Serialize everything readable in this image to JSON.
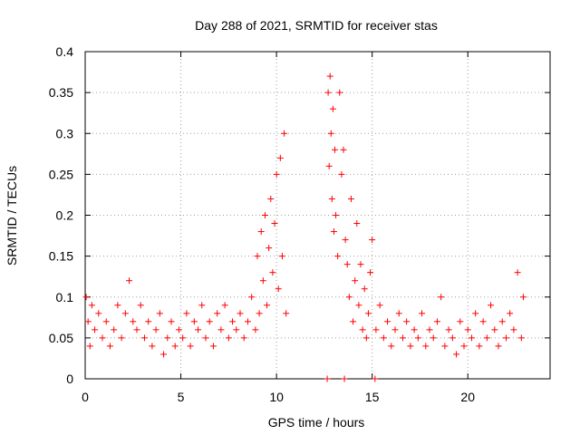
{
  "chart_data": {
    "type": "scatter",
    "title": "Day 288 of 2021, SRMTID for receiver stas",
    "xlabel": "GPS time / hours",
    "ylabel": "SRMTID / TECUs",
    "xlim": [
      0,
      24.3
    ],
    "ylim": [
      0,
      0.4
    ],
    "xticks": [
      0,
      5,
      10,
      15,
      20
    ],
    "xtick_labels": [
      "0",
      "5",
      "10",
      "15",
      "20"
    ],
    "yticks": [
      0,
      0.05,
      0.1,
      0.15,
      0.2,
      0.25,
      0.3,
      0.35,
      0.4
    ],
    "ytick_labels": [
      "0",
      "0.05",
      "0.1",
      "0.15",
      "0.2",
      "0.25",
      "0.3",
      "0.35",
      "0.4"
    ],
    "grid": true,
    "marker": "+",
    "color": "#ff0000",
    "series": [
      {
        "name": "SRMTID",
        "x": [
          0.05,
          0.15,
          0.25,
          0.35,
          0.5,
          0.7,
          0.9,
          1.1,
          1.3,
          1.5,
          1.7,
          1.9,
          2.1,
          2.3,
          2.5,
          2.7,
          2.9,
          3.1,
          3.3,
          3.5,
          3.7,
          3.9,
          4.1,
          4.3,
          4.5,
          4.7,
          4.9,
          5.1,
          5.3,
          5.5,
          5.7,
          5.9,
          6.1,
          6.3,
          6.5,
          6.7,
          6.9,
          7.1,
          7.3,
          7.5,
          7.7,
          7.9,
          8.1,
          8.3,
          8.5,
          8.7,
          8.9,
          9.0,
          9.1,
          9.2,
          9.3,
          9.4,
          9.5,
          9.6,
          9.7,
          9.8,
          9.9,
          10.0,
          10.1,
          10.2,
          10.3,
          10.4,
          10.5,
          12.7,
          12.75,
          12.8,
          12.85,
          12.9,
          12.95,
          13.0,
          13.05,
          13.1,
          13.2,
          13.3,
          13.4,
          13.5,
          13.6,
          13.7,
          13.8,
          13.9,
          14.0,
          14.1,
          14.2,
          14.3,
          14.4,
          14.5,
          14.6,
          14.7,
          14.8,
          14.9,
          15.0,
          15.2,
          15.4,
          15.6,
          15.8,
          16.0,
          16.2,
          16.4,
          16.6,
          16.8,
          17.0,
          17.2,
          17.4,
          17.6,
          17.8,
          18.0,
          18.2,
          18.4,
          18.6,
          18.8,
          19.0,
          19.2,
          19.4,
          19.6,
          19.8,
          20.0,
          20.2,
          20.4,
          20.6,
          20.8,
          21.0,
          21.2,
          21.4,
          21.6,
          21.8,
          22.0,
          22.2,
          22.4,
          22.6,
          22.8,
          22.9,
          12.65,
          13.55,
          15.15
        ],
        "y": [
          0.1,
          0.07,
          0.04,
          0.09,
          0.06,
          0.08,
          0.05,
          0.07,
          0.04,
          0.06,
          0.09,
          0.05,
          0.08,
          0.12,
          0.07,
          0.06,
          0.09,
          0.05,
          0.07,
          0.04,
          0.06,
          0.08,
          0.03,
          0.05,
          0.07,
          0.04,
          0.06,
          0.05,
          0.08,
          0.04,
          0.07,
          0.06,
          0.09,
          0.05,
          0.07,
          0.04,
          0.08,
          0.06,
          0.09,
          0.05,
          0.07,
          0.06,
          0.08,
          0.05,
          0.07,
          0.1,
          0.06,
          0.15,
          0.08,
          0.18,
          0.12,
          0.2,
          0.09,
          0.16,
          0.22,
          0.13,
          0.19,
          0.25,
          0.11,
          0.27,
          0.15,
          0.3,
          0.08,
          0.35,
          0.26,
          0.37,
          0.3,
          0.22,
          0.33,
          0.18,
          0.28,
          0.2,
          0.15,
          0.35,
          0.25,
          0.28,
          0.17,
          0.14,
          0.1,
          0.22,
          0.07,
          0.12,
          0.19,
          0.09,
          0.14,
          0.06,
          0.11,
          0.05,
          0.08,
          0.13,
          0.17,
          0.06,
          0.09,
          0.05,
          0.07,
          0.04,
          0.06,
          0.08,
          0.05,
          0.07,
          0.04,
          0.06,
          0.05,
          0.08,
          0.04,
          0.06,
          0.05,
          0.07,
          0.1,
          0.04,
          0.06,
          0.05,
          0.03,
          0.07,
          0.04,
          0.06,
          0.05,
          0.08,
          0.04,
          0.07,
          0.05,
          0.09,
          0.06,
          0.04,
          0.07,
          0.05,
          0.08,
          0.06,
          0.13,
          0.05,
          0.1,
          0.0,
          0.0,
          0.0
        ]
      }
    ]
  }
}
